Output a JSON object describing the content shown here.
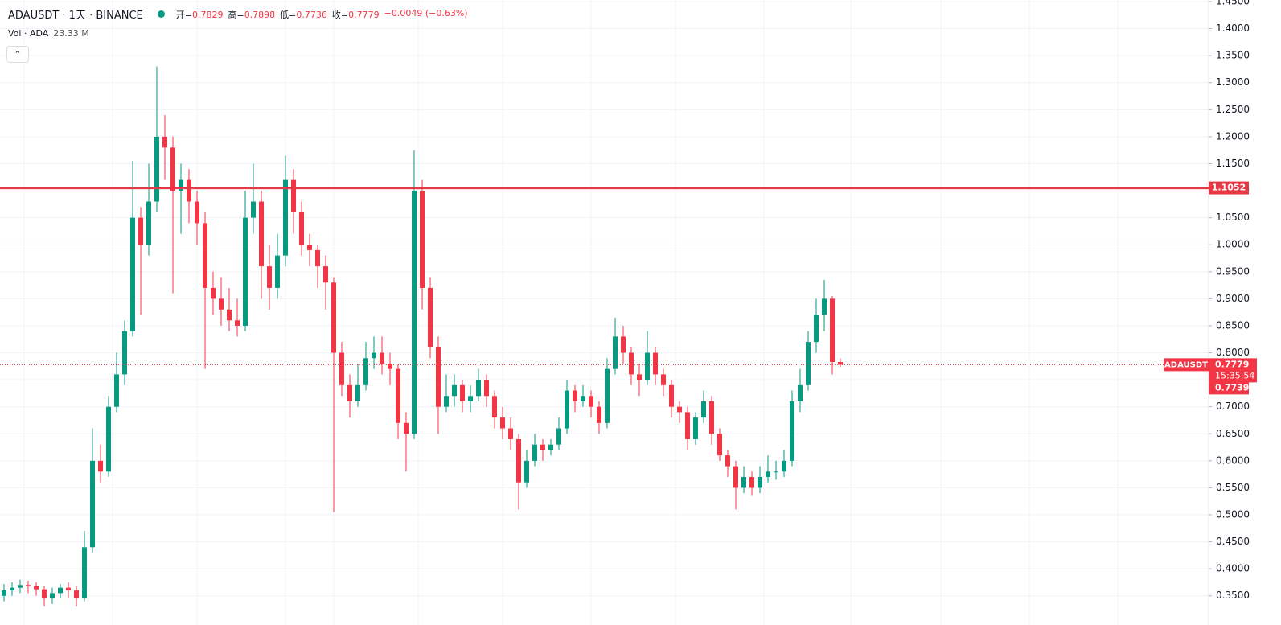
{
  "chart_data": {
    "type": "candlestick",
    "symbol": "ADAUSDT · 1天 · BINANCE",
    "legend": [
      {
        "key": "开=",
        "value": "0.7829"
      },
      {
        "key": "高=",
        "value": "0.7898"
      },
      {
        "key": "低=",
        "value": "0.7736"
      },
      {
        "key": "收=",
        "value": "0.7779"
      },
      {
        "key": "",
        "value": "−0.0049 (−0.63%)"
      }
    ],
    "volume_label": "Vol · ADA",
    "volume_value": "23.33 M",
    "up_color": "#089981",
    "down_color": "#f23645",
    "ylim": [
      0.296,
      1.453
    ],
    "yticks": [
      {
        "value": 0.35,
        "label": "0.3500"
      },
      {
        "value": 0.4,
        "label": "0.4000"
      },
      {
        "value": 0.45,
        "label": "0.4500"
      },
      {
        "value": 0.5,
        "label": "0.5000"
      },
      {
        "value": 0.55,
        "label": "0.5500"
      },
      {
        "value": 0.6,
        "label": "0.6000"
      },
      {
        "value": 0.65,
        "label": "0.6500"
      },
      {
        "value": 0.7,
        "label": "0.7000"
      },
      {
        "value": 0.75,
        "label": "0.7500"
      },
      {
        "value": 0.8,
        "label": "0.8000"
      },
      {
        "value": 0.85,
        "label": "0.8500"
      },
      {
        "value": 0.9,
        "label": "0.9000"
      },
      {
        "value": 0.95,
        "label": "0.9500"
      },
      {
        "value": 1.0,
        "label": "1.0000"
      },
      {
        "value": 1.05,
        "label": "1.0500"
      },
      {
        "value": 1.1,
        "label": "1.1000"
      },
      {
        "value": 1.15,
        "label": "1.1500"
      },
      {
        "value": 1.2,
        "label": "1.2000"
      },
      {
        "value": 1.25,
        "label": "1.2500"
      },
      {
        "value": 1.3,
        "label": "1.3000"
      },
      {
        "value": 1.35,
        "label": "1.3500"
      },
      {
        "value": 1.4,
        "label": "1.4000"
      },
      {
        "value": 1.45,
        "label": "1.4500"
      }
    ],
    "grid": true,
    "hlines": [
      {
        "value": 1.1052,
        "label": "1.1052",
        "color": "#e53945"
      }
    ],
    "last_price": {
      "name": "ADAUSDT",
      "value": 0.7779,
      "label": "0.7779",
      "countdown": "15:35:54",
      "color": "#f23645"
    },
    "marker": {
      "value": 0.7739,
      "label": "0.7739"
    },
    "ohlc": [
      [
        0.35,
        0.372,
        0.34,
        0.36
      ],
      [
        0.36,
        0.375,
        0.35,
        0.365
      ],
      [
        0.365,
        0.38,
        0.355,
        0.37
      ],
      [
        0.37,
        0.378,
        0.355,
        0.368
      ],
      [
        0.368,
        0.375,
        0.35,
        0.362
      ],
      [
        0.362,
        0.368,
        0.33,
        0.345
      ],
      [
        0.345,
        0.365,
        0.335,
        0.355
      ],
      [
        0.355,
        0.372,
        0.345,
        0.365
      ],
      [
        0.365,
        0.375,
        0.345,
        0.36
      ],
      [
        0.36,
        0.368,
        0.33,
        0.345
      ],
      [
        0.345,
        0.47,
        0.34,
        0.44
      ],
      [
        0.44,
        0.66,
        0.43,
        0.6
      ],
      [
        0.6,
        0.63,
        0.56,
        0.58
      ],
      [
        0.58,
        0.72,
        0.57,
        0.7
      ],
      [
        0.7,
        0.8,
        0.69,
        0.76
      ],
      [
        0.76,
        0.86,
        0.74,
        0.84
      ],
      [
        0.84,
        1.155,
        0.83,
        1.05
      ],
      [
        1.05,
        1.07,
        0.87,
        1.0
      ],
      [
        1.0,
        1.15,
        0.98,
        1.08
      ],
      [
        1.08,
        1.33,
        1.06,
        1.2
      ],
      [
        1.2,
        1.24,
        1.12,
        1.18
      ],
      [
        1.18,
        1.2,
        0.91,
        1.1
      ],
      [
        1.1,
        1.15,
        1.02,
        1.12
      ],
      [
        1.12,
        1.14,
        1.04,
        1.08
      ],
      [
        1.08,
        1.1,
        1.0,
        1.04
      ],
      [
        1.04,
        1.06,
        0.77,
        0.92
      ],
      [
        0.92,
        0.95,
        0.87,
        0.9
      ],
      [
        0.9,
        0.94,
        0.85,
        0.88
      ],
      [
        0.88,
        0.92,
        0.84,
        0.86
      ],
      [
        0.86,
        0.9,
        0.83,
        0.85
      ],
      [
        0.85,
        1.1,
        0.84,
        1.05
      ],
      [
        1.05,
        1.15,
        1.02,
        1.08
      ],
      [
        1.08,
        1.1,
        0.9,
        0.96
      ],
      [
        0.96,
        1.0,
        0.88,
        0.92
      ],
      [
        0.92,
        1.02,
        0.9,
        0.98
      ],
      [
        0.98,
        1.165,
        0.96,
        1.12
      ],
      [
        1.12,
        1.14,
        1.02,
        1.06
      ],
      [
        1.06,
        1.08,
        0.98,
        1.0
      ],
      [
        1.0,
        1.02,
        0.96,
        0.99
      ],
      [
        0.99,
        1.0,
        0.92,
        0.96
      ],
      [
        0.96,
        0.98,
        0.88,
        0.93
      ],
      [
        0.93,
        0.94,
        0.505,
        0.8
      ],
      [
        0.8,
        0.82,
        0.72,
        0.74
      ],
      [
        0.74,
        0.76,
        0.68,
        0.71
      ],
      [
        0.71,
        0.78,
        0.7,
        0.74
      ],
      [
        0.74,
        0.82,
        0.73,
        0.79
      ],
      [
        0.79,
        0.83,
        0.77,
        0.8
      ],
      [
        0.8,
        0.83,
        0.76,
        0.78
      ],
      [
        0.78,
        0.8,
        0.74,
        0.77
      ],
      [
        0.77,
        0.78,
        0.64,
        0.67
      ],
      [
        0.67,
        0.69,
        0.58,
        0.65
      ],
      [
        0.65,
        1.175,
        0.64,
        1.1
      ],
      [
        1.1,
        1.12,
        0.88,
        0.92
      ],
      [
        0.92,
        0.94,
        0.79,
        0.81
      ],
      [
        0.81,
        0.83,
        0.65,
        0.7
      ],
      [
        0.7,
        0.76,
        0.69,
        0.72
      ],
      [
        0.72,
        0.76,
        0.7,
        0.74
      ],
      [
        0.74,
        0.75,
        0.69,
        0.71
      ],
      [
        0.71,
        0.74,
        0.69,
        0.72
      ],
      [
        0.72,
        0.77,
        0.71,
        0.75
      ],
      [
        0.75,
        0.76,
        0.7,
        0.72
      ],
      [
        0.72,
        0.73,
        0.66,
        0.68
      ],
      [
        0.68,
        0.7,
        0.64,
        0.66
      ],
      [
        0.66,
        0.68,
        0.62,
        0.64
      ],
      [
        0.64,
        0.65,
        0.51,
        0.56
      ],
      [
        0.56,
        0.62,
        0.55,
        0.6
      ],
      [
        0.6,
        0.65,
        0.59,
        0.63
      ],
      [
        0.63,
        0.64,
        0.6,
        0.62
      ],
      [
        0.62,
        0.64,
        0.61,
        0.63
      ],
      [
        0.63,
        0.68,
        0.62,
        0.66
      ],
      [
        0.66,
        0.75,
        0.65,
        0.73
      ],
      [
        0.73,
        0.74,
        0.69,
        0.71
      ],
      [
        0.71,
        0.74,
        0.7,
        0.72
      ],
      [
        0.72,
        0.73,
        0.68,
        0.7
      ],
      [
        0.7,
        0.71,
        0.65,
        0.67
      ],
      [
        0.67,
        0.79,
        0.66,
        0.77
      ],
      [
        0.77,
        0.865,
        0.76,
        0.83
      ],
      [
        0.83,
        0.85,
        0.78,
        0.8
      ],
      [
        0.8,
        0.81,
        0.74,
        0.76
      ],
      [
        0.76,
        0.78,
        0.72,
        0.75
      ],
      [
        0.75,
        0.84,
        0.74,
        0.8
      ],
      [
        0.8,
        0.81,
        0.74,
        0.76
      ],
      [
        0.76,
        0.77,
        0.72,
        0.74
      ],
      [
        0.74,
        0.75,
        0.68,
        0.7
      ],
      [
        0.7,
        0.71,
        0.67,
        0.69
      ],
      [
        0.69,
        0.7,
        0.62,
        0.64
      ],
      [
        0.64,
        0.69,
        0.63,
        0.68
      ],
      [
        0.68,
        0.73,
        0.67,
        0.71
      ],
      [
        0.71,
        0.72,
        0.63,
        0.65
      ],
      [
        0.65,
        0.66,
        0.6,
        0.61
      ],
      [
        0.61,
        0.62,
        0.57,
        0.59
      ],
      [
        0.59,
        0.6,
        0.51,
        0.55
      ],
      [
        0.55,
        0.59,
        0.54,
        0.57
      ],
      [
        0.57,
        0.58,
        0.535,
        0.55
      ],
      [
        0.55,
        0.59,
        0.54,
        0.57
      ],
      [
        0.57,
        0.61,
        0.56,
        0.58
      ],
      [
        0.58,
        0.6,
        0.565,
        0.58
      ],
      [
        0.58,
        0.62,
        0.57,
        0.6
      ],
      [
        0.6,
        0.73,
        0.59,
        0.71
      ],
      [
        0.71,
        0.77,
        0.69,
        0.74
      ],
      [
        0.74,
        0.84,
        0.73,
        0.82
      ],
      [
        0.82,
        0.9,
        0.8,
        0.87
      ],
      [
        0.87,
        0.935,
        0.84,
        0.9
      ],
      [
        0.9,
        0.905,
        0.76,
        0.7829
      ],
      [
        0.7829,
        0.7898,
        0.7736,
        0.7779
      ]
    ]
  }
}
